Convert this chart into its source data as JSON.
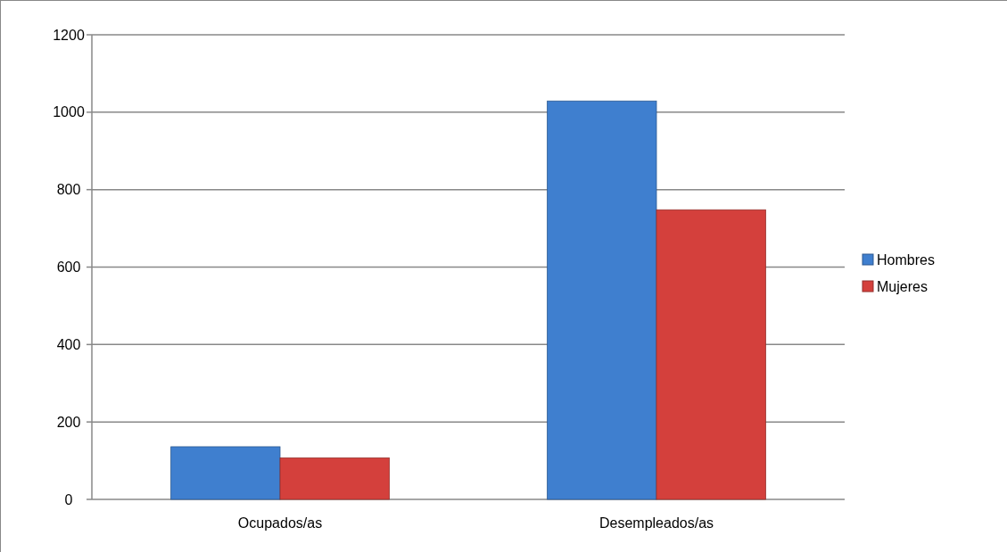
{
  "chart_data": {
    "type": "bar",
    "categories": [
      "Ocupados/as",
      "Desempleados/as"
    ],
    "series": [
      {
        "name": "Hombres",
        "color": "#3f7fcf",
        "values": [
          136,
          1029
        ]
      },
      {
        "name": "Mujeres",
        "color": "#d4403c",
        "values": [
          107,
          748
        ]
      }
    ],
    "ylim": [
      0,
      1200
    ],
    "yticks": [
      0,
      200,
      400,
      600,
      800,
      1000,
      1200
    ],
    "grid": "y",
    "legend": "right"
  }
}
